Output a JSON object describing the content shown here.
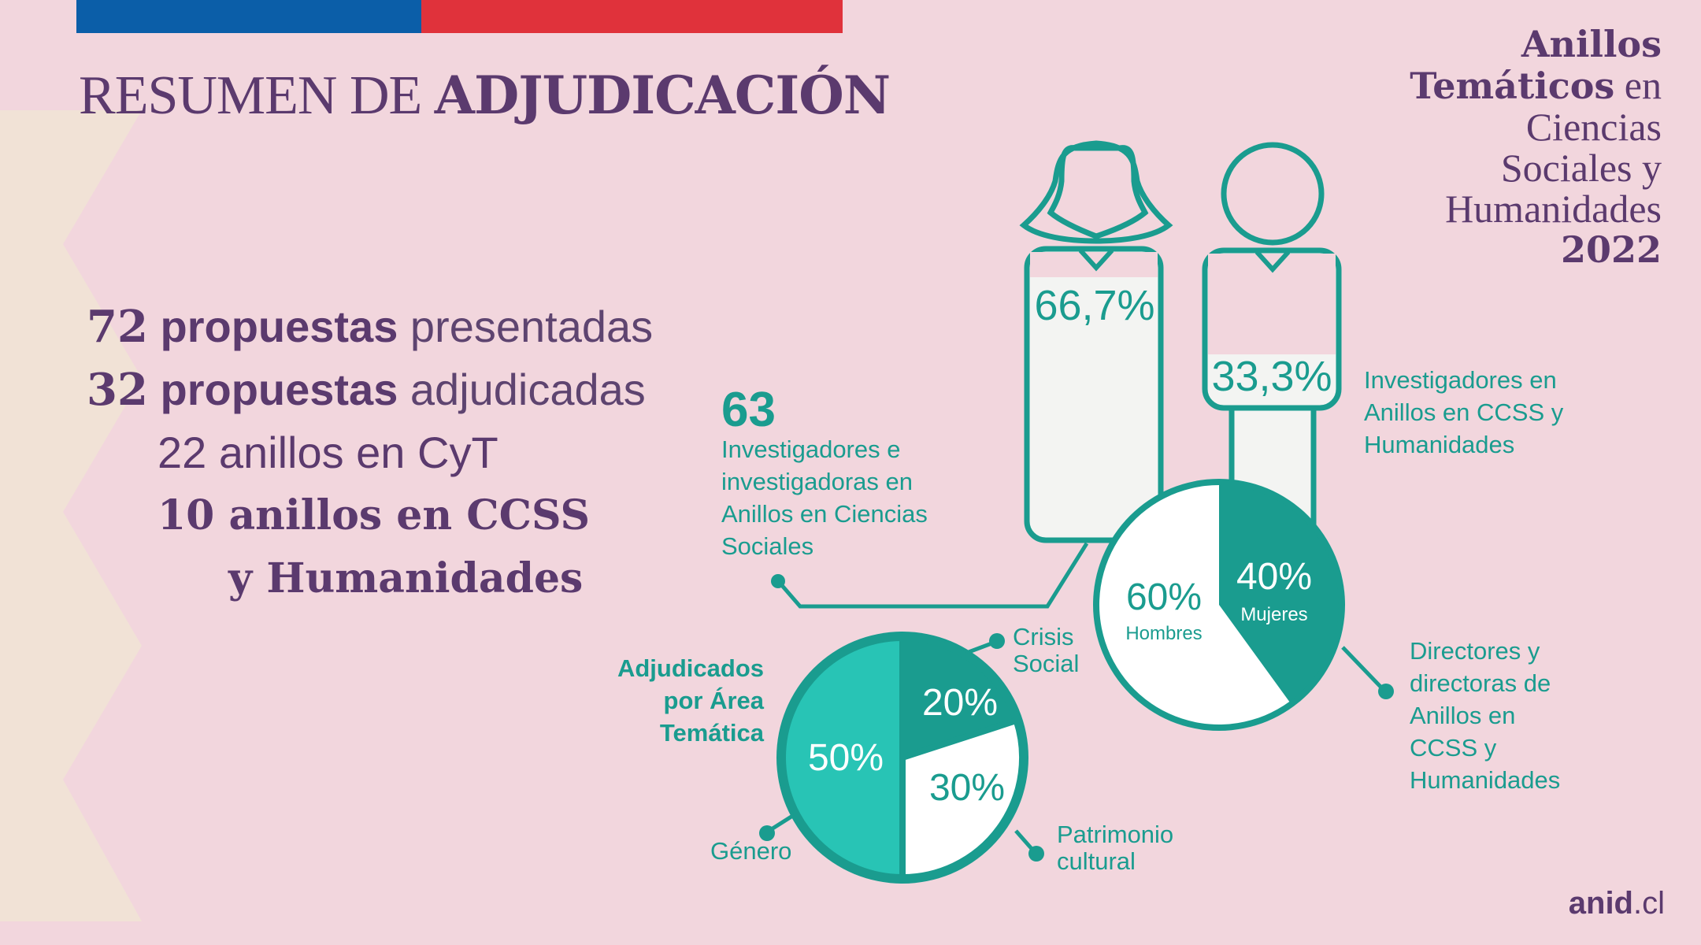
{
  "colors": {
    "background": "#f2d6dd",
    "purple": "#5b3a6e",
    "teal": "#1a9c8f",
    "teal_light": "#28c4b5",
    "flag_blue": "#0b5ea8",
    "flag_red": "#e0323b",
    "zigzag": "#f1e2d6"
  },
  "header": {
    "title_light": "RESUMEN DE ",
    "title_bold": "ADJUDICACIÓN",
    "corner_line1": "Anillos",
    "corner_line2_bold": "Temáticos",
    "corner_line2_light": " en",
    "corner_line3": "Ciencias",
    "corner_line4": "Sociales y",
    "corner_line5": "Humanidades",
    "corner_year": "2022"
  },
  "stats": {
    "presented_num": "72",
    "presented_b": " propuestas",
    "presented_l": " presentadas",
    "awarded_num": "32",
    "awarded_b": " propuestas",
    "awarded_l": " adjudicadas",
    "cyt": "22 anillos en CyT",
    "ccss_line1": "10 anillos en CCSS",
    "ccss_line2": "y Humanidades"
  },
  "chart_data": [
    {
      "type": "bar",
      "title": "Investigadores en Anillos en CCSS y Humanidades",
      "categories": [
        "Mujeres",
        "Hombres"
      ],
      "values": [
        66.7,
        33.3
      ],
      "labels": [
        "66,7%",
        "33,3%"
      ],
      "total_number": "63",
      "total_label": [
        "Investigadores e",
        "investigadoras en",
        "Anillos en Ciencias",
        "Sociales"
      ],
      "legend_lines": [
        "Investigadores en",
        "Anillos en CCSS y",
        "Humanidades"
      ]
    },
    {
      "type": "pie",
      "title": "Directores y directoras de Anillos en CCSS y Humanidades",
      "categories": [
        "Mujeres",
        "Hombres"
      ],
      "values": [
        40,
        60
      ],
      "labels": [
        "40%",
        "60%"
      ],
      "legend_lines": [
        "Directores y",
        "directoras de",
        "Anillos en",
        "CCSS y",
        "Humanidades"
      ]
    },
    {
      "type": "pie",
      "title": "Adjudicados por Área Temática",
      "title_lines": [
        "Adjudicados",
        "por Área",
        "Temática"
      ],
      "categories": [
        "Crisis Social",
        "Patrimonio cultural",
        "Género"
      ],
      "category_lines": [
        [
          "Crisis",
          "Social"
        ],
        [
          "Patrimonio",
          "cultural"
        ],
        [
          "Género"
        ]
      ],
      "values": [
        20,
        30,
        50
      ],
      "labels": [
        "20%",
        "30%",
        "50%"
      ]
    }
  ],
  "footer": {
    "bold": "anid",
    "light": ".cl"
  }
}
